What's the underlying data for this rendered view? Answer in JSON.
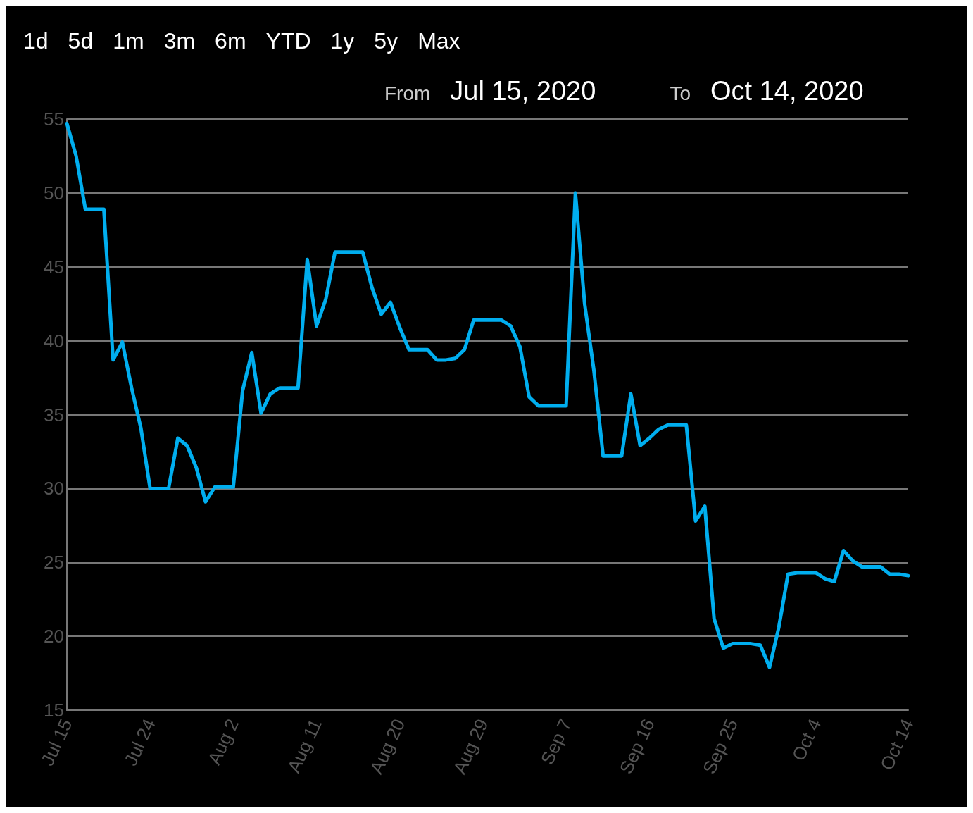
{
  "chart_data": {
    "type": "line",
    "annotations": [
      "1d",
      "5d",
      "1m",
      "3m",
      "6m",
      "YTD",
      "1y",
      "5y",
      "Max",
      "From",
      "Jul 15, 2020",
      "To",
      "Oct 14, 2020"
    ],
    "x": [
      "2020-07-15",
      "2020-07-16",
      "2020-07-17",
      "2020-07-19",
      "2020-07-20",
      "2020-07-21",
      "2020-07-22",
      "2020-07-23",
      "2020-07-24",
      "2020-07-26",
      "2020-07-27",
      "2020-07-28",
      "2020-07-29",
      "2020-07-30",
      "2020-07-31",
      "2020-08-02",
      "2020-08-03",
      "2020-08-04",
      "2020-08-05",
      "2020-08-06",
      "2020-08-07",
      "2020-08-09",
      "2020-08-10",
      "2020-08-11",
      "2020-08-12",
      "2020-08-13",
      "2020-08-16",
      "2020-08-17",
      "2020-08-18",
      "2020-08-19",
      "2020-08-20",
      "2020-08-21",
      "2020-08-23",
      "2020-08-24",
      "2020-08-25",
      "2020-08-26",
      "2020-08-27",
      "2020-08-28",
      "2020-08-31",
      "2020-09-01",
      "2020-09-02",
      "2020-09-03",
      "2020-09-04",
      "2020-09-07",
      "2020-09-08",
      "2020-09-09",
      "2020-09-10",
      "2020-09-11",
      "2020-09-13",
      "2020-09-14",
      "2020-09-15",
      "2020-09-16",
      "2020-09-17",
      "2020-09-18",
      "2020-09-20",
      "2020-09-21",
      "2020-09-22",
      "2020-09-23",
      "2020-09-24",
      "2020-09-25",
      "2020-09-27",
      "2020-09-28",
      "2020-09-29",
      "2020-09-30",
      "2020-10-01",
      "2020-10-02",
      "2020-10-04",
      "2020-10-05",
      "2020-10-06",
      "2020-10-07",
      "2020-10-08",
      "2020-10-09",
      "2020-10-11",
      "2020-10-12",
      "2020-10-13",
      "2020-10-14"
    ],
    "series": [
      {
        "color": "#00aeef",
        "values": [
          54.7,
          52.5,
          48.9,
          48.9,
          38.7,
          39.9,
          36.8,
          34.1,
          30.0,
          30.0,
          33.4,
          32.9,
          31.4,
          29.1,
          30.1,
          30.1,
          36.6,
          39.2,
          35.1,
          36.4,
          36.8,
          36.8,
          45.5,
          41.0,
          42.8,
          46.0,
          46.0,
          43.6,
          41.8,
          42.6,
          40.9,
          39.4,
          39.4,
          38.7,
          38.7,
          38.8,
          39.4,
          41.4,
          41.4,
          41.0,
          39.6,
          36.2,
          35.6,
          35.6,
          50.0,
          42.5,
          38.0,
          32.2,
          32.2,
          36.4,
          32.9,
          33.4,
          34.0,
          34.3,
          34.3,
          27.8,
          28.8,
          21.2,
          19.2,
          19.5,
          19.5,
          19.4,
          17.9,
          20.6,
          24.2,
          24.3,
          24.3,
          23.9,
          23.7,
          25.8,
          25.1,
          24.7,
          24.7,
          24.2,
          24.2,
          24.1
        ]
      }
    ],
    "xlim": [
      "2020-07-15",
      "2020-10-14"
    ],
    "xticks": [
      {
        "value": "2020-07-15",
        "label": "Jul 15"
      },
      {
        "value": "2020-07-24",
        "label": "Jul 24"
      },
      {
        "value": "2020-08-02",
        "label": "Aug 2"
      },
      {
        "value": "2020-08-11",
        "label": "Aug 11"
      },
      {
        "value": "2020-08-20",
        "label": "Aug 20"
      },
      {
        "value": "2020-08-29",
        "label": "Aug 29"
      },
      {
        "value": "2020-09-07",
        "label": "Sep 7"
      },
      {
        "value": "2020-09-16",
        "label": "Sep 16"
      },
      {
        "value": "2020-09-25",
        "label": "Sep 25"
      },
      {
        "value": "2020-10-04",
        "label": "Oct 4"
      },
      {
        "value": "2020-10-14",
        "label": "Oct 14"
      }
    ],
    "ylim": [
      15,
      55
    ],
    "yticks": [
      15,
      20,
      25,
      30,
      35,
      40,
      45,
      50,
      55
    ],
    "grid": "y",
    "marker": "none",
    "line_style": "solid"
  }
}
